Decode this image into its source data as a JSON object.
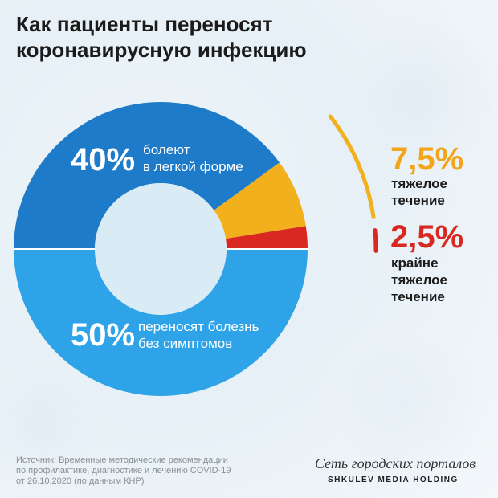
{
  "title": "Как пациенты переносят\nкоронавирусную инфекцию",
  "chart_data": {
    "type": "pie",
    "slices": [
      {
        "value": 40,
        "pct_label": "40%",
        "label": "болеют\nв легкой форме",
        "color": "#1d7bc9"
      },
      {
        "value": 7.5,
        "pct_label": "7,5%",
        "label": "тяжелое\nтечение",
        "color": "#f2b01c"
      },
      {
        "value": 2.5,
        "pct_label": "2,5%",
        "label": "крайне\nтяжелое\nтечение",
        "color": "#d8281f"
      },
      {
        "value": 50,
        "pct_label": "50%",
        "label": "переносят болезнь\nбез симптомов",
        "color": "#2ea3e8"
      }
    ]
  },
  "footer": {
    "source": "Источник: Временные методические рекомендации\nпо профилактике, диагностике и лечению COVID-19\nот 26.10.2020 (по данным КНР)",
    "brand_name": "Сеть городских порталов",
    "brand_sub": "SHKULEV MEDIA HOLDING"
  }
}
